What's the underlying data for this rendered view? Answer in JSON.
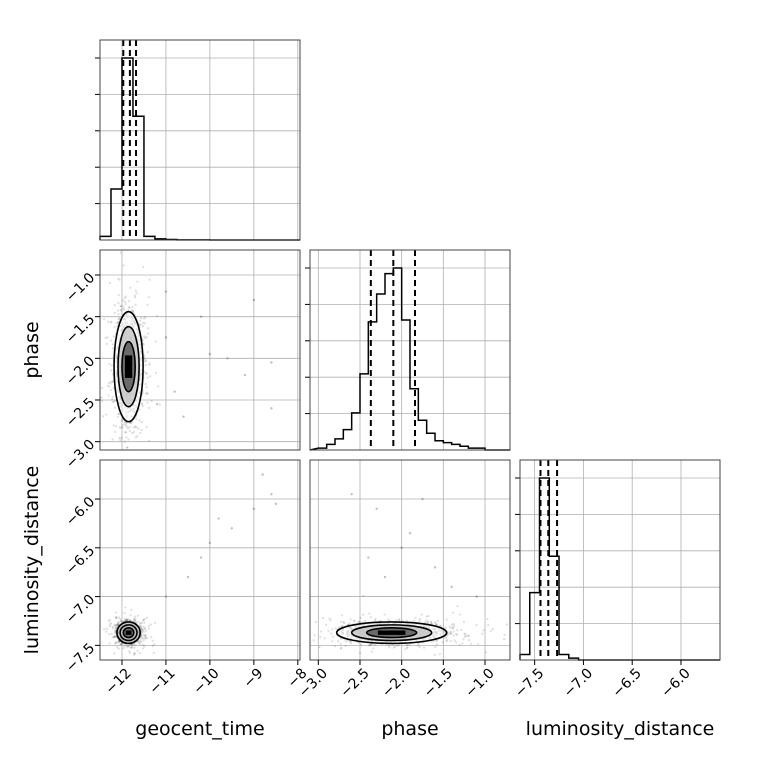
{
  "chart_data": {
    "type": "corner",
    "parameters": [
      "geocent_time",
      "phase",
      "luminosity_distance"
    ],
    "axes": {
      "geocent_time": {
        "label": "geocent_time",
        "range": [
          -12.5,
          -7.95
        ],
        "ticks": [
          -12,
          -11,
          -10,
          -9,
          -8
        ],
        "tick_labels": [
          "−12",
          "−11",
          "−10",
          "−9",
          "−8"
        ]
      },
      "phase": {
        "label": "phase",
        "range": [
          -3.1,
          -0.7
        ],
        "ticks": [
          -3.0,
          -2.5,
          -2.0,
          -1.5,
          -1.0
        ],
        "tick_labels": [
          "−3.0",
          "−2.5",
          "−2.0",
          "−1.5",
          "−1.0"
        ]
      },
      "luminosity_distance": {
        "label": "luminosity_distance",
        "range": [
          -7.65,
          -5.6
        ],
        "ticks": [
          -7.5,
          -7.0,
          -6.5,
          -6.0
        ],
        "tick_labels": [
          "−7.5",
          "−7.0",
          "−6.5",
          "−6.0"
        ]
      }
    },
    "histograms": [
      {
        "parameter": "geocent_time",
        "bin_edges": [
          -12.5,
          -12.25,
          -12.0,
          -11.75,
          -11.5,
          -11.25,
          -11.0,
          -10.75,
          -10.5,
          -10.25,
          -10.0,
          -9.75,
          -9.5,
          -9.25,
          -9.0,
          -8.75,
          -8.5,
          -8.25,
          -8.0
        ],
        "counts": [
          0.02,
          0.28,
          1.0,
          0.68,
          0.02,
          0.006,
          0.003,
          0.001,
          0.001,
          0.001,
          0,
          0,
          0,
          0,
          0,
          0,
          0,
          0
        ],
        "quantiles": [
          -11.97,
          -11.82,
          -11.68
        ]
      },
      {
        "parameter": "phase",
        "bin_edges": [
          -3.0,
          -2.9,
          -2.8,
          -2.7,
          -2.6,
          -2.5,
          -2.4,
          -2.3,
          -2.2,
          -2.1,
          -2.0,
          -1.9,
          -1.8,
          -1.7,
          -1.6,
          -1.5,
          -1.4,
          -1.3,
          -1.2,
          -1.1,
          -1.0,
          -0.9
        ],
        "counts": [
          0.01,
          0.03,
          0.06,
          0.11,
          0.2,
          0.41,
          0.69,
          0.84,
          0.95,
          0.98,
          0.7,
          0.33,
          0.16,
          0.09,
          0.05,
          0.04,
          0.03,
          0.02,
          0.01,
          0.01,
          0.0
        ],
        "quantiles": [
          -2.37,
          -2.1,
          -1.84
        ]
      },
      {
        "parameter": "luminosity_distance",
        "bin_edges": [
          -7.65,
          -7.55,
          -7.45,
          -7.35,
          -7.25,
          -7.15,
          -7.05,
          -6.95,
          -6.85,
          -6.75,
          -6.65,
          -6.55,
          -6.45,
          -6.35,
          -6.25,
          -6.15,
          -6.05,
          -5.95,
          -5.85,
          -5.75,
          -5.65
        ],
        "counts": [
          0.03,
          0.37,
          1.0,
          0.57,
          0.03,
          0.01,
          0.0,
          0.0,
          0.0,
          0.0,
          0.0,
          0.0,
          0.0,
          0.0,
          0.0,
          0.0,
          0.0,
          0.0,
          0.0,
          0.0
        ],
        "quantiles": [
          -7.44,
          -7.36,
          -7.27
        ]
      }
    ],
    "scatter_panels": [
      {
        "x": "geocent_time",
        "y": "phase",
        "peak": [
          -11.85,
          -2.1
        ],
        "spread": [
          0.15,
          0.3
        ],
        "outliers": [
          [
            -11.0,
            -1.2
          ],
          [
            -10.2,
            -1.5
          ],
          [
            -10.0,
            -1.95
          ],
          [
            -9.6,
            -2.0
          ],
          [
            -9.0,
            -1.3
          ],
          [
            -8.6,
            -2.05
          ],
          [
            -8.6,
            -2.6
          ],
          [
            -10.8,
            -2.4
          ],
          [
            -11.0,
            -1.75
          ],
          [
            -9.2,
            -2.2
          ],
          [
            -10.6,
            -2.7
          ],
          [
            -11.2,
            -2.55
          ]
        ]
      },
      {
        "x": "geocent_time",
        "y": "luminosity_distance",
        "peak": [
          -11.85,
          -7.37
        ],
        "spread": [
          0.12,
          0.05
        ],
        "outliers": [
          [
            -10.5,
            -6.8
          ],
          [
            -10.0,
            -6.45
          ],
          [
            -9.5,
            -6.3
          ],
          [
            -9.0,
            -6.1
          ],
          [
            -8.6,
            -5.95
          ],
          [
            -8.8,
            -5.75
          ],
          [
            -10.2,
            -6.6
          ],
          [
            -11.0,
            -7.0
          ],
          [
            -9.8,
            -6.2
          ],
          [
            -8.5,
            -6.05
          ]
        ]
      },
      {
        "x": "phase",
        "y": "luminosity_distance",
        "peak": [
          -2.12,
          -7.37
        ],
        "spread": [
          0.3,
          0.05
        ],
        "outliers": [
          [
            -2.6,
            -5.95
          ],
          [
            -2.3,
            -6.1
          ],
          [
            -2.0,
            -6.5
          ],
          [
            -1.9,
            -6.35
          ],
          [
            -2.2,
            -6.8
          ],
          [
            -1.75,
            -6.0
          ],
          [
            -1.6,
            -6.7
          ],
          [
            -1.4,
            -6.9
          ],
          [
            -2.4,
            -6.6
          ],
          [
            -1.1,
            -7.0
          ]
        ]
      }
    ],
    "grid": true,
    "title": ""
  }
}
